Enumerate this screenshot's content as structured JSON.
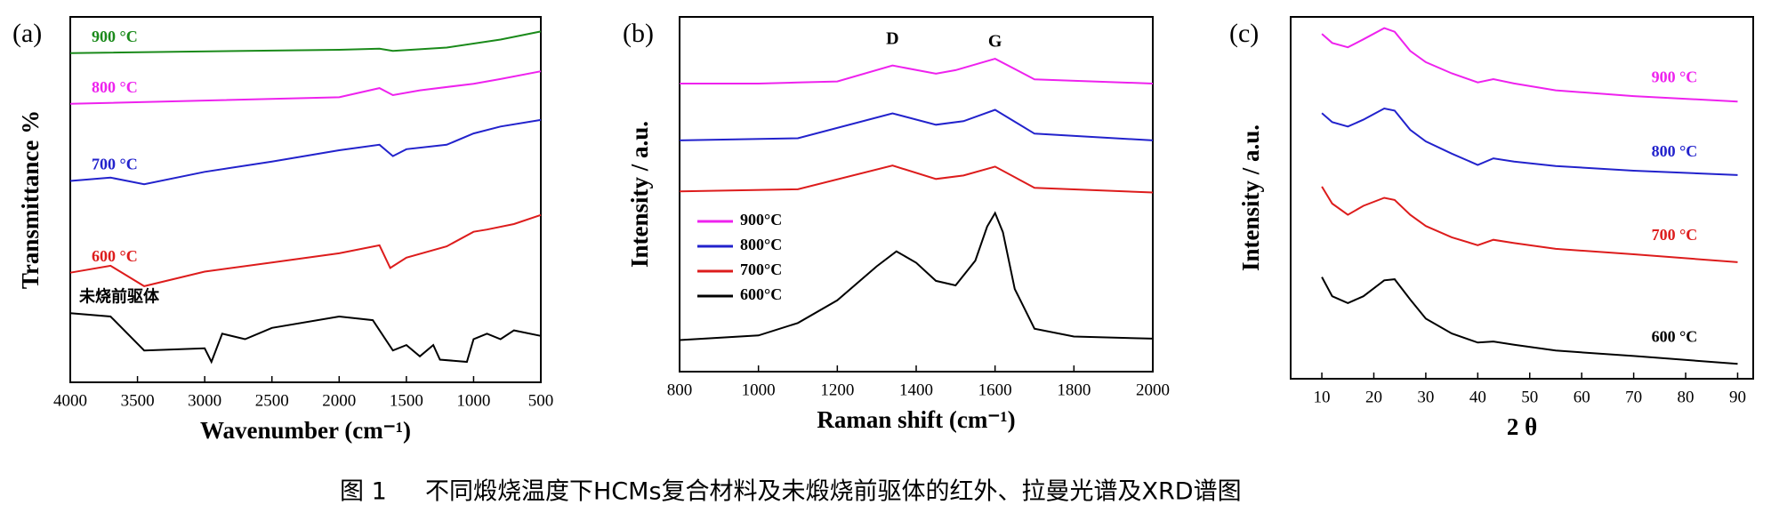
{
  "chart_data": [
    {
      "type": "line",
      "title": "(a)",
      "xlabel": "Wavenumber (cm⁻¹)",
      "ylabel": "Transmittance %",
      "xlim": [
        4000,
        500
      ],
      "xticks": [
        4000,
        3500,
        3000,
        2500,
        2000,
        1500,
        1000,
        500
      ],
      "ylim": [
        0,
        100
      ],
      "series": [
        {
          "name": "900 °C",
          "color": "#1a8a1a",
          "x": [
            4000,
            2000,
            1700,
            1600,
            1200,
            800,
            500
          ],
          "values": [
            90.1,
            91.0,
            91.3,
            90.7,
            91.6,
            93.8,
            96.0
          ]
        },
        {
          "name": "800 °C",
          "color": "#ee22ee",
          "x": [
            4000,
            2000,
            1700,
            1600,
            1400,
            1000,
            800,
            500
          ],
          "values": [
            76.2,
            78.0,
            80.5,
            78.6,
            79.9,
            81.7,
            83.0,
            85.1
          ]
        },
        {
          "name": "700 °C",
          "color": "#2222cc",
          "x": [
            4000,
            3700,
            3450,
            3000,
            2500,
            2000,
            1700,
            1600,
            1500,
            1200,
            1000,
            800,
            500
          ],
          "values": [
            55.1,
            56.0,
            54.2,
            57.6,
            60.4,
            63.5,
            65.0,
            61.9,
            63.8,
            65.0,
            68.1,
            70.0,
            71.8
          ]
        },
        {
          "name": "600 °C",
          "color": "#dd1c1c",
          "x": [
            4000,
            3700,
            3450,
            3000,
            2500,
            2000,
            1700,
            1620,
            1500,
            1200,
            1000,
            900,
            700,
            500
          ],
          "values": [
            30.0,
            31.9,
            26.3,
            30.3,
            32.8,
            35.3,
            37.5,
            31.3,
            34.1,
            37.2,
            41.2,
            41.8,
            43.3,
            45.8
          ]
        },
        {
          "name": "未烧前驱体",
          "color": "#000000",
          "x": [
            4000,
            3700,
            3450,
            3000,
            2950,
            2870,
            2700,
            2500,
            2000,
            1750,
            1600,
            1500,
            1400,
            1300,
            1250,
            1050,
            1000,
            900,
            800,
            700,
            500
          ],
          "values": [
            18.9,
            18.0,
            8.7,
            9.3,
            5.6,
            13.3,
            11.8,
            14.9,
            18.0,
            17.0,
            8.7,
            10.2,
            7.1,
            10.2,
            6.2,
            5.6,
            11.8,
            13.3,
            11.8,
            14.2,
            12.7
          ]
        }
      ]
    },
    {
      "type": "line",
      "title": "(b)",
      "xlabel": "Raman shift (cm⁻¹)",
      "ylabel": "Intensity / a.u.",
      "xlim": [
        800,
        2000
      ],
      "xticks": [
        800,
        1000,
        1200,
        1400,
        1600,
        1800,
        2000
      ],
      "ylim": [
        0,
        100
      ],
      "legend": "lower left",
      "annotations": [
        {
          "text": "D",
          "x": 1340
        },
        {
          "text": "G",
          "x": 1600
        }
      ],
      "series": [
        {
          "name": "900°C",
          "color": "#ee22ee",
          "x": [
            800,
            1000,
            1100,
            1200,
            1340,
            1450,
            1500,
            1600,
            1700,
            2000
          ],
          "values": [
            81.2,
            81.2,
            81.5,
            81.8,
            86.3,
            84.0,
            85.0,
            88.2,
            82.4,
            81.2
          ]
        },
        {
          "name": "800°C",
          "color": "#2222cc",
          "x": [
            800,
            1100,
            1340,
            1450,
            1520,
            1600,
            1700,
            2000
          ],
          "values": [
            65.2,
            65.8,
            72.8,
            69.6,
            70.6,
            73.8,
            67.1,
            65.2
          ]
        },
        {
          "name": "700°C",
          "color": "#dd1c1c",
          "x": [
            800,
            1100,
            1340,
            1450,
            1520,
            1600,
            1700,
            2000
          ],
          "values": [
            50.8,
            51.4,
            58.1,
            54.3,
            55.3,
            57.8,
            51.8,
            50.5
          ]
        },
        {
          "name": "600°C",
          "color": "#000000",
          "x": [
            800,
            1000,
            1100,
            1200,
            1300,
            1350,
            1400,
            1450,
            1500,
            1550,
            1580,
            1600,
            1620,
            1650,
            1700,
            1800,
            2000
          ],
          "values": [
            8.9,
            10.2,
            13.7,
            20.1,
            29.7,
            33.9,
            30.7,
            25.6,
            24.3,
            31.3,
            40.9,
            44.7,
            39.3,
            23.3,
            12.1,
            9.9,
            9.3
          ]
        }
      ]
    },
    {
      "type": "line",
      "title": "(c)",
      "xlabel": "2 θ",
      "ylabel": "Intensity / a.u.",
      "xlim": [
        4,
        93
      ],
      "xticks": [
        10,
        20,
        30,
        40,
        50,
        60,
        70,
        80,
        90
      ],
      "ylim": [
        0,
        100
      ],
      "series": [
        {
          "name": "900 °C",
          "color": "#ee22ee",
          "x": [
            10,
            12,
            15,
            18,
            22,
            24,
            27,
            30,
            35,
            40,
            43,
            47,
            55,
            70,
            90
          ],
          "values": [
            95.3,
            92.8,
            91.6,
            93.8,
            96.9,
            95.9,
            90.6,
            87.5,
            84.4,
            81.9,
            82.8,
            81.6,
            79.7,
            78.1,
            76.6
          ]
        },
        {
          "name": "800 °C",
          "color": "#2222cc",
          "x": [
            10,
            12,
            15,
            18,
            22,
            24,
            27,
            30,
            35,
            40,
            43,
            47,
            55,
            70,
            90
          ],
          "values": [
            73.4,
            70.9,
            69.7,
            71.6,
            74.7,
            74.1,
            68.8,
            65.6,
            62.2,
            59.1,
            60.9,
            60.0,
            58.8,
            57.5,
            56.3
          ]
        },
        {
          "name": "700 °C",
          "color": "#dd1c1c",
          "x": [
            10,
            12,
            15,
            18,
            22,
            24,
            27,
            30,
            35,
            40,
            43,
            47,
            55,
            70,
            90
          ],
          "values": [
            53.1,
            48.4,
            45.3,
            47.8,
            50.0,
            49.4,
            45.3,
            42.2,
            39.1,
            36.9,
            38.4,
            37.5,
            35.9,
            34.4,
            32.2
          ]
        },
        {
          "name": "600 °C",
          "color": "#000000",
          "x": [
            10,
            12,
            15,
            18,
            22,
            24,
            27,
            30,
            35,
            40,
            43,
            47,
            55,
            70,
            90
          ],
          "values": [
            28.1,
            22.8,
            20.9,
            22.8,
            27.2,
            27.5,
            21.9,
            16.6,
            12.5,
            10.0,
            10.3,
            9.4,
            7.8,
            6.3,
            4.1
          ]
        }
      ]
    }
  ],
  "caption": {
    "number": "图 1",
    "text": "不同煅烧温度下HCMs复合材料及未煅烧前驱体的红外、拉曼光谱及XRD谱图"
  }
}
